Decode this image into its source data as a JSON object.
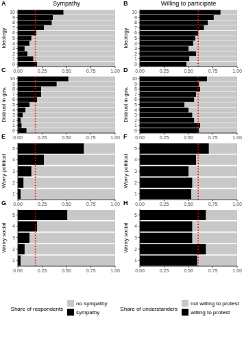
{
  "chart_data": [
    {
      "type": "bar",
      "orientation": "horizontal",
      "stacked": true,
      "title": "A",
      "subtitle": "Sympathy",
      "ylabel": "Ideology",
      "categories": [
        "0",
        "1",
        "2",
        "3",
        "4",
        "5",
        "6",
        "7",
        "8",
        "9",
        "10"
      ],
      "series": [
        {
          "name": "sympathy",
          "color": "#000000",
          "values": [
            0.2,
            0.16,
            0.1,
            0.07,
            0.12,
            0.14,
            0.19,
            0.27,
            0.35,
            0.36,
            0.47
          ]
        },
        {
          "name": "no sympathy",
          "color": "#c8c8c8",
          "values": [
            0.8,
            0.84,
            0.9,
            0.93,
            0.88,
            0.86,
            0.81,
            0.73,
            0.65,
            0.64,
            0.53
          ]
        }
      ],
      "reference_line": 0.18,
      "xlim": [
        0,
        1
      ],
      "xticks": [
        {
          "value": 0,
          "label": "0.00"
        },
        {
          "value": 0.25,
          "label": "0.25"
        },
        {
          "value": 0.5,
          "label": "0.50"
        },
        {
          "value": 0.75,
          "label": "0.75"
        },
        {
          "value": 1,
          "label": "1.00"
        }
      ]
    },
    {
      "type": "bar",
      "orientation": "horizontal",
      "stacked": true,
      "title": "B",
      "subtitle": "Willing to participate",
      "ylabel": "Ideology",
      "categories": [
        "0",
        "1",
        "2",
        "3",
        "4",
        "5",
        "6",
        "7",
        "8",
        "9",
        "10"
      ],
      "series": [
        {
          "name": "willing to protest",
          "color": "#000000",
          "values": [
            0.48,
            0.51,
            0.58,
            0.5,
            0.55,
            0.57,
            0.6,
            0.66,
            0.7,
            0.76,
            0.83
          ]
        },
        {
          "name": "not willing to protest",
          "color": "#c8c8c8",
          "values": [
            0.52,
            0.49,
            0.42,
            0.5,
            0.45,
            0.43,
            0.4,
            0.34,
            0.3,
            0.24,
            0.17
          ]
        }
      ],
      "reference_line": 0.6,
      "xlim": [
        0,
        1
      ],
      "xticks": [
        {
          "value": 0,
          "label": "0.00"
        },
        {
          "value": 0.25,
          "label": "0.25"
        },
        {
          "value": 0.5,
          "label": "0.50"
        },
        {
          "value": 0.75,
          "label": "0.75"
        },
        {
          "value": 1,
          "label": "1.00"
        }
      ]
    },
    {
      "type": "bar",
      "orientation": "horizontal",
      "stacked": true,
      "title": "C",
      "ylabel": "Distrust in gov.",
      "categories": [
        "0",
        "1",
        "2",
        "3",
        "4",
        "5",
        "6",
        "7",
        "8",
        "9",
        "10"
      ],
      "series": [
        {
          "name": "sympathy",
          "color": "#000000",
          "values": [
            0.09,
            0.04,
            0.03,
            0.05,
            0.08,
            0.12,
            0.2,
            0.24,
            0.24,
            0.4,
            0.52
          ]
        },
        {
          "name": "no sympathy",
          "color": "#c8c8c8",
          "values": [
            0.91,
            0.96,
            0.97,
            0.95,
            0.92,
            0.88,
            0.8,
            0.76,
            0.76,
            0.6,
            0.48
          ]
        }
      ],
      "reference_line": 0.18,
      "xlim": [
        0,
        1
      ],
      "xticks": [
        {
          "value": 0,
          "label": "0.00"
        },
        {
          "value": 0.25,
          "label": "0.25"
        },
        {
          "value": 0.5,
          "label": "0.50"
        },
        {
          "value": 0.75,
          "label": "0.75"
        },
        {
          "value": 1,
          "label": "1.00"
        }
      ]
    },
    {
      "type": "bar",
      "orientation": "horizontal",
      "stacked": true,
      "title": "D",
      "ylabel": "Distrust in gov.",
      "categories": [
        "0",
        "1",
        "2",
        "3",
        "4",
        "5",
        "6",
        "7",
        "8",
        "9",
        "10"
      ],
      "series": [
        {
          "name": "willing to protest",
          "color": "#000000",
          "values": [
            0.61,
            0.62,
            0.56,
            0.54,
            0.5,
            0.46,
            0.56,
            0.58,
            0.62,
            0.61,
            0.69
          ]
        },
        {
          "name": "not willing to protest",
          "color": "#c8c8c8",
          "values": [
            0.39,
            0.38,
            0.44,
            0.46,
            0.5,
            0.54,
            0.44,
            0.42,
            0.38,
            0.39,
            0.31
          ]
        }
      ],
      "reference_line": 0.6,
      "xlim": [
        0,
        1
      ],
      "xticks": [
        {
          "value": 0,
          "label": "0.00"
        },
        {
          "value": 0.25,
          "label": "0.25"
        },
        {
          "value": 0.5,
          "label": "0.50"
        },
        {
          "value": 0.75,
          "label": "0.75"
        },
        {
          "value": 1,
          "label": "1.00"
        }
      ]
    },
    {
      "type": "bar",
      "orientation": "horizontal",
      "stacked": true,
      "title": "E",
      "ylabel": "Worry political",
      "categories": [
        "1",
        "2",
        "3",
        "4",
        "5"
      ],
      "series": [
        {
          "name": "sympathy",
          "color": "#000000",
          "values": [
            0.03,
            0.06,
            0.14,
            0.27,
            0.68
          ]
        },
        {
          "name": "no sympathy",
          "color": "#c8c8c8",
          "values": [
            0.97,
            0.94,
            0.86,
            0.73,
            0.32
          ]
        }
      ],
      "reference_line": 0.18,
      "xlim": [
        0,
        1
      ],
      "xticks": [
        {
          "value": 0,
          "label": "0.00"
        },
        {
          "value": 0.25,
          "label": "0.25"
        },
        {
          "value": 0.5,
          "label": "0.50"
        },
        {
          "value": 0.75,
          "label": "0.75"
        },
        {
          "value": 1,
          "label": "1.00"
        }
      ]
    },
    {
      "type": "bar",
      "orientation": "horizontal",
      "stacked": true,
      "title": "F",
      "ylabel": "Worry political",
      "categories": [
        "1",
        "2",
        "3",
        "4",
        "5"
      ],
      "series": [
        {
          "name": "willing to protest",
          "color": "#000000",
          "values": [
            0.53,
            0.54,
            0.5,
            0.58,
            0.71
          ]
        },
        {
          "name": "not willing to protest",
          "color": "#c8c8c8",
          "values": [
            0.47,
            0.46,
            0.5,
            0.42,
            0.29
          ]
        }
      ],
      "reference_line": 0.6,
      "xlim": [
        0,
        1
      ],
      "xticks": [
        {
          "value": 0,
          "label": "0.00"
        },
        {
          "value": 0.25,
          "label": "0.25"
        },
        {
          "value": 0.5,
          "label": "0.50"
        },
        {
          "value": 0.75,
          "label": "0.75"
        },
        {
          "value": 1,
          "label": "1.00"
        }
      ]
    },
    {
      "type": "bar",
      "orientation": "horizontal",
      "stacked": true,
      "title": "G",
      "ylabel": "Worry social",
      "categories": [
        "1",
        "2",
        "3",
        "4",
        "5"
      ],
      "series": [
        {
          "name": "sympathy",
          "color": "#000000",
          "values": [
            0.03,
            0.07,
            0.12,
            0.2,
            0.51
          ]
        },
        {
          "name": "no sympathy",
          "color": "#c8c8c8",
          "values": [
            0.97,
            0.93,
            0.88,
            0.8,
            0.49
          ]
        }
      ],
      "reference_line": 0.18,
      "xlim": [
        0,
        1
      ],
      "xticks": [
        {
          "value": 0,
          "label": "0.00"
        },
        {
          "value": 0.25,
          "label": "0.25"
        },
        {
          "value": 0.5,
          "label": "0.50"
        },
        {
          "value": 0.75,
          "label": "0.75"
        },
        {
          "value": 1,
          "label": "1.00"
        }
      ],
      "legend": "bottom",
      "legend_title": "Share of respondents"
    },
    {
      "type": "bar",
      "orientation": "horizontal",
      "stacked": true,
      "title": "H",
      "ylabel": "Worry social",
      "categories": [
        "1",
        "2",
        "3",
        "4",
        "5"
      ],
      "series": [
        {
          "name": "willing to protest",
          "color": "#000000",
          "values": [
            0.59,
            0.68,
            0.54,
            0.54,
            0.68
          ]
        },
        {
          "name": "not willing to protest",
          "color": "#c8c8c8",
          "values": [
            0.41,
            0.32,
            0.46,
            0.46,
            0.32
          ]
        }
      ],
      "reference_line": 0.6,
      "xlim": [
        0,
        1
      ],
      "xticks": [
        {
          "value": 0,
          "label": "0.00"
        },
        {
          "value": 0.25,
          "label": "0.25"
        },
        {
          "value": 0.5,
          "label": "0.50"
        },
        {
          "value": 0.75,
          "label": "0.75"
        },
        {
          "value": 1,
          "label": "1.00"
        }
      ],
      "legend": "bottom",
      "legend_title": "Share of understanders"
    }
  ]
}
